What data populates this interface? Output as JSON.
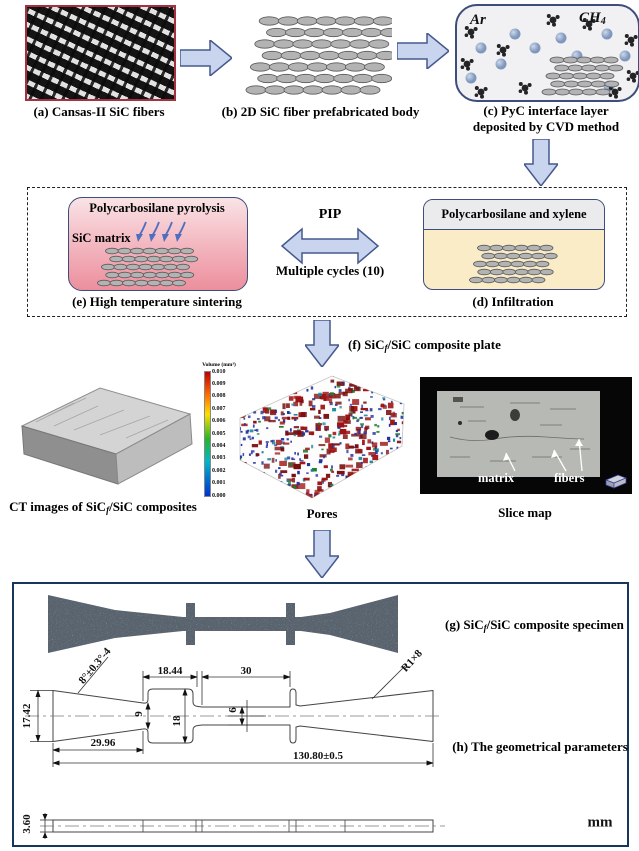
{
  "step_a": {
    "caption": "(a) Cansas-II SiC fibers"
  },
  "step_b": {
    "caption": "(b) 2D SiC fiber prefabricated body"
  },
  "step_c": {
    "caption_line1": "(c) PyC interface layer",
    "caption_line2": "deposited by CVD method",
    "ar_label": "Ar",
    "ch4_label": "CH",
    "ch4_sub": "4"
  },
  "step_e": {
    "title": "Polycarbosilane pyrolysis",
    "matrix_label": "SiC matrix",
    "caption": "(e) High temperature sintering"
  },
  "pip": {
    "title": "PIP",
    "subtitle": "Multiple cycles (10)"
  },
  "step_d": {
    "header": "Polycarbosilane and xylene",
    "caption": "(d) Infiltration"
  },
  "step_f": {
    "pre": "(f) SiC",
    "sub": "f",
    "post": "/SiC composite plate"
  },
  "ct": {
    "pre": "CT images of SiC",
    "sub": "f",
    "post": "/SiC composites"
  },
  "colorbar": {
    "title": "Volume (mm³)",
    "ticks": [
      "0.010",
      "0.009",
      "0.008",
      "0.007",
      "0.006",
      "0.005",
      "0.004",
      "0.003",
      "0.002",
      "0.001",
      "0.000"
    ]
  },
  "pores": {
    "caption": "Pores"
  },
  "slice": {
    "caption": "Slice map",
    "matrix_label": "matrix",
    "fibers_label": "fibers"
  },
  "step_g": {
    "pre": "(g) SiC",
    "sub": "f",
    "post": "/SiC composite specimen"
  },
  "step_h": {
    "caption": "(h) The geometrical parameters"
  },
  "dims": {
    "angle": "8°±0.3°-4",
    "len_tab": "18.44",
    "len_gauge": "30",
    "radius": "R1×8",
    "width_end": "17.42",
    "w9": "9",
    "w18": "18",
    "w6": "6",
    "len_taper": "29.96",
    "len_total": "130.80±0.5",
    "thickness": "3.60",
    "unit": "mm"
  },
  "colors": {
    "arrow_fill": "#c9d5ef",
    "arrow_stroke": "#46598e",
    "dashed_border": "#222222",
    "bottom_box_border": "#17365d",
    "fiber_frame_red": "#a5303f",
    "sintering_pink": "#ec8f9d",
    "infiltration_yellow": "#f9ecc7",
    "specimen_gray": "#59636e"
  }
}
